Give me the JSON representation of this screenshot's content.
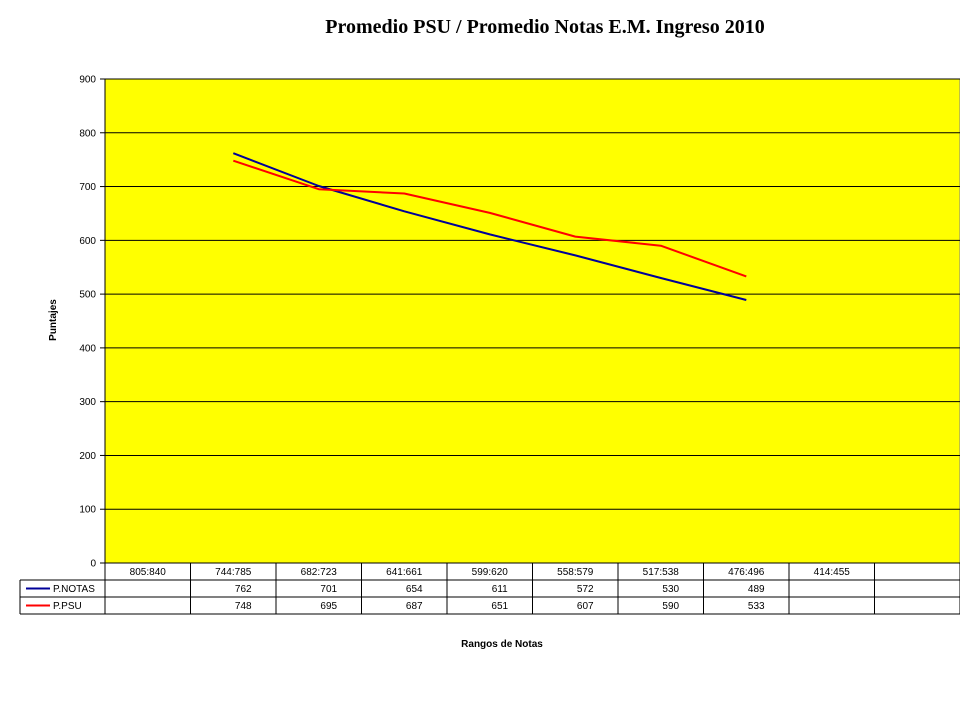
{
  "chart_data": {
    "type": "line",
    "title": "Promedio PSU / Promedio Notas E.M. Ingreso 2010",
    "xlabel": "Rangos de Notas",
    "ylabel": "Puntajes",
    "ylim": [
      0,
      900
    ],
    "yticks": [
      "0",
      "100",
      "200",
      "300",
      "400",
      "500",
      "600",
      "700",
      "800",
      "900"
    ],
    "categories": [
      "805:840",
      "744:785",
      "682:723",
      "641:661",
      "599:620",
      "558:579",
      "517:538",
      "476:496",
      "414:455"
    ],
    "series": [
      {
        "name": "P.NOTAS",
        "color": "#000099",
        "values": [
          null,
          762,
          701,
          654,
          611,
          572,
          530,
          489,
          null
        ]
      },
      {
        "name": "P.PSU",
        "color": "#ff0000",
        "values": [
          null,
          748,
          695,
          687,
          651,
          607,
          590,
          533,
          null
        ]
      }
    ],
    "plot_background": "#ffff00",
    "grid": true,
    "legend": "data-table"
  }
}
